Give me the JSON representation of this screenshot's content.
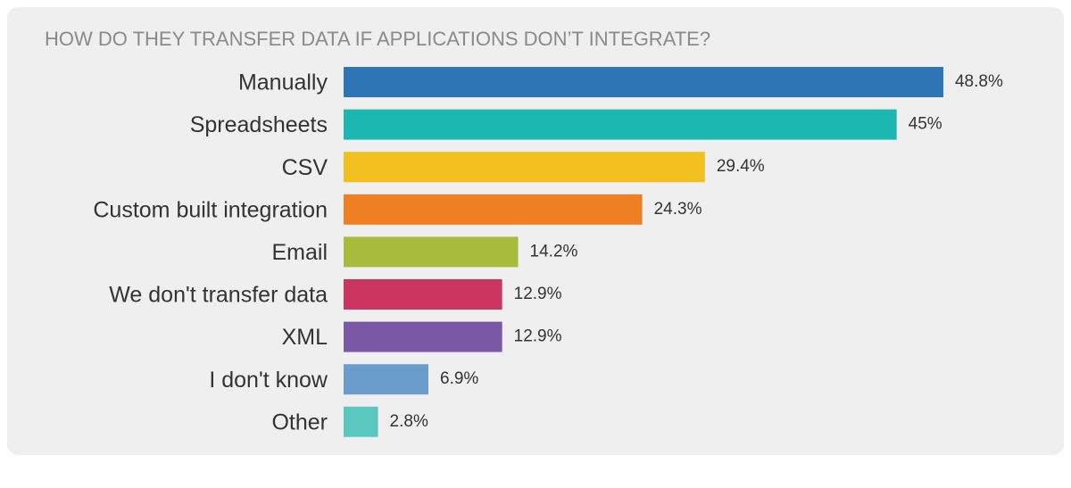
{
  "chart_data": {
    "type": "bar",
    "orientation": "horizontal",
    "title": "HOW DO THEY TRANSFER DATA IF APPLICATIONS DON’T INTEGRATE?",
    "categories": [
      "Manually",
      "Spreadsheets",
      "CSV",
      "Custom built integration",
      "Email",
      "We don't transfer data",
      "XML",
      "I don't know",
      "Other"
    ],
    "values": [
      48.8,
      45,
      29.4,
      24.3,
      14.2,
      12.9,
      12.9,
      6.9,
      2.8
    ],
    "value_labels": [
      "48.8%",
      "45%",
      "29.4%",
      "24.3%",
      "14.2%",
      "12.9%",
      "12.9%",
      "6.9%",
      "2.8%"
    ],
    "colors": [
      "#2e75b6",
      "#1bb7b0",
      "#f2c01e",
      "#ee7f22",
      "#a8bb3a",
      "#cc3560",
      "#7b58a6",
      "#6a9dcc",
      "#5bc8c0"
    ]
  }
}
